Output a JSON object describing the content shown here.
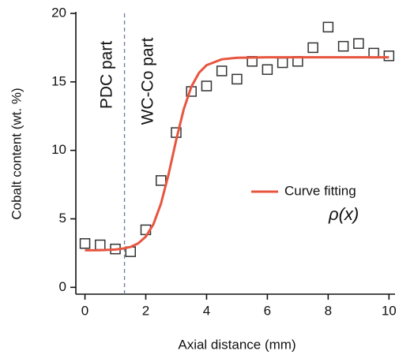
{
  "chart_data": {
    "type": "scatter",
    "x_label": "Axial distance (mm)",
    "y_label": "Cobalt content (wt. %)",
    "xlim": [
      -0.3,
      10.2
    ],
    "ylim": [
      -0.5,
      20
    ],
    "xticks": [
      0,
      2,
      4,
      6,
      8,
      10
    ],
    "yticks": [
      0,
      5,
      10,
      15,
      20
    ],
    "divider_x": 1.3,
    "annotations": [
      "PDC part",
      "WC-Co part",
      "ρ(x)"
    ],
    "series": [
      {
        "marker": "square",
        "color": "#333333",
        "x": [
          0,
          0.5,
          1,
          1.5,
          2,
          2.5,
          3,
          3.5,
          4,
          4.5,
          5,
          5.5,
          6,
          6.5,
          7,
          7.5,
          8,
          8.5,
          9,
          9.5,
          10
        ],
        "values": [
          3.2,
          3.1,
          2.8,
          2.6,
          4.2,
          7.8,
          11.3,
          14.3,
          14.7,
          15.8,
          15.2,
          16.5,
          15.9,
          16.4,
          16.5,
          17.5,
          19.0,
          17.6,
          17.8,
          17.1,
          16.9
        ]
      },
      {
        "name": "Curve fitting",
        "marker": "line",
        "color": "#e8553f",
        "x": [
          0,
          0.5,
          1,
          1.25,
          1.5,
          1.75,
          2,
          2.25,
          2.5,
          2.75,
          3,
          3.25,
          3.5,
          3.75,
          4,
          4.5,
          5,
          6,
          8,
          10
        ],
        "values": [
          2.7,
          2.71,
          2.76,
          2.83,
          2.95,
          3.21,
          3.7,
          4.6,
          6.11,
          8.25,
          10.75,
          13.01,
          14.65,
          15.66,
          16.22,
          16.65,
          16.76,
          16.8,
          16.8,
          16.8
        ]
      }
    ]
  }
}
